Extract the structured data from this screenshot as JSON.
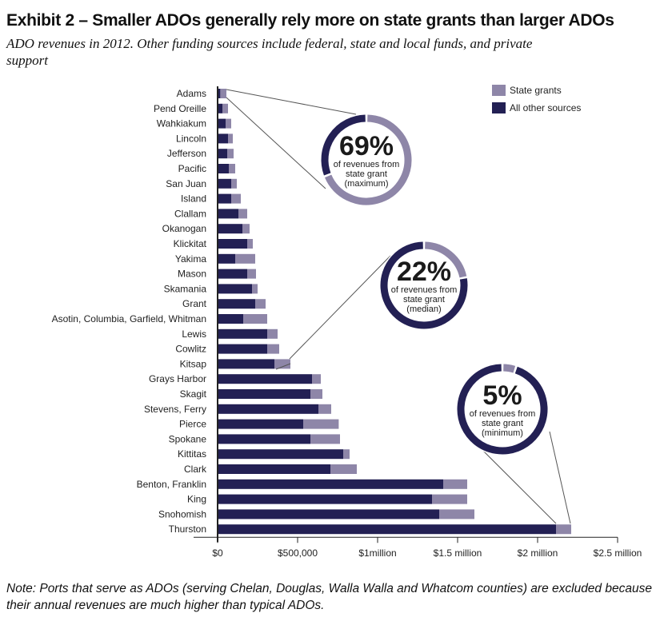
{
  "title": "Exhibit 2 – Smaller ADOs generally rely more on state grants than larger ADOs",
  "subtitle": "ADO revenues in 2012. Other funding sources include federal, state and local funds, and private support",
  "note": "Note: Ports that serve as ADOs (serving Chelan, Douglas, Walla Walla and Whatcom counties) are excluded because their annual revenues are much higher than typical ADOs.",
  "colors": {
    "state_grants": "#8e86a8",
    "all_other": "#232054"
  },
  "chart_data": {
    "type": "bar",
    "orientation": "horizontal",
    "stacked": true,
    "xlim": [
      0,
      2500000
    ],
    "x_ticks": [
      {
        "value": 0,
        "label": "$0"
      },
      {
        "value": 500000,
        "label": "$500,000"
      },
      {
        "value": 1000000,
        "label": "$1million"
      },
      {
        "value": 1500000,
        "label": "$1.5 million"
      },
      {
        "value": 2000000,
        "label": "$2 million"
      },
      {
        "value": 2500000,
        "label": "$2.5 million"
      }
    ],
    "legend_position": "top-right",
    "categories": [
      "Adams",
      "Pend Oreille",
      "Wahkiakum",
      "Lincoln",
      "Jefferson",
      "Pacific",
      "San Juan",
      "Island",
      "Clallam",
      "Okanogan",
      "Klickitat",
      "Yakima",
      "Mason",
      "Skamania",
      "Grant",
      "Asotin, Columbia, Garfield, Whitman",
      "Lewis",
      "Cowlitz",
      "Kitsap",
      "Grays Harbor",
      "Skagit",
      "Stevens, Ferry",
      "Pierce",
      "Spokane",
      "Kittitas",
      "Clark",
      "Benton, Franklin",
      "King",
      "Snohomish",
      "Thurston"
    ],
    "series": [
      {
        "name": "All other sources",
        "values": [
          17000,
          30000,
          50000,
          65000,
          60000,
          70000,
          85000,
          85000,
          130000,
          155000,
          185000,
          110000,
          185000,
          215000,
          235000,
          160000,
          310000,
          310000,
          355000,
          590000,
          580000,
          630000,
          535000,
          580000,
          785000,
          705000,
          1410000,
          1340000,
          1385000,
          2115000
        ]
      },
      {
        "name": "State grants",
        "values": [
          38000,
          35000,
          35000,
          30000,
          40000,
          40000,
          35000,
          60000,
          55000,
          45000,
          35000,
          125000,
          55000,
          35000,
          65000,
          150000,
          65000,
          75000,
          100000,
          55000,
          75000,
          80000,
          222000,
          185000,
          40000,
          165000,
          150000,
          220000,
          220000,
          95000
        ]
      }
    ],
    "callouts": [
      {
        "percent": "69%",
        "text_lines": [
          "of revenues from",
          "state grant",
          "(maximum)"
        ],
        "value": 0.69,
        "category": "Adams"
      },
      {
        "percent": "22%",
        "text_lines": [
          "of revenues from",
          "state grant",
          "(median)"
        ],
        "value": 0.22,
        "category": "Kitsap"
      },
      {
        "percent": "5%",
        "text_lines": [
          "of revenues from",
          "state grant",
          "(minimum)"
        ],
        "value": 0.05,
        "category": "Thurston"
      }
    ]
  }
}
